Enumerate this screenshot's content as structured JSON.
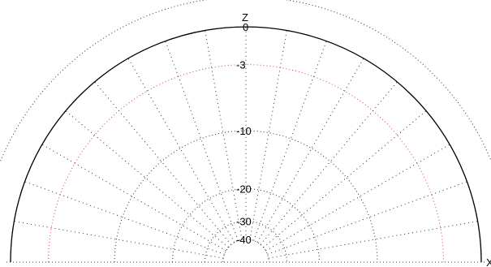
{
  "chart_data": {
    "type": "polar-elevation",
    "radial_scale": "ARRL log",
    "radial_ticks_db": [
      0,
      -3,
      -10,
      -20,
      -30,
      -40
    ],
    "radial_tick_labels": [
      "0",
      "-3",
      "-10",
      "-20",
      "-30",
      "-40"
    ],
    "angle_spoke_step_deg": 10,
    "axis_labels": {
      "vertical": "Z",
      "horizontal": "X"
    },
    "series": [
      {
        "values_db": [
          0,
          0,
          0,
          0,
          0,
          0,
          0,
          0,
          0,
          0,
          0,
          0,
          0,
          0,
          0,
          0,
          0,
          0,
          0
        ],
        "elevation_deg": [
          0,
          10,
          20,
          30,
          40,
          50,
          60,
          70,
          80,
          90,
          100,
          110,
          120,
          130,
          140,
          150,
          160,
          170,
          180
        ]
      }
    ],
    "grid": true
  },
  "colors": {
    "gain_trace": "#000000",
    "db3_ring": "#d04040",
    "grid": "#303030"
  }
}
